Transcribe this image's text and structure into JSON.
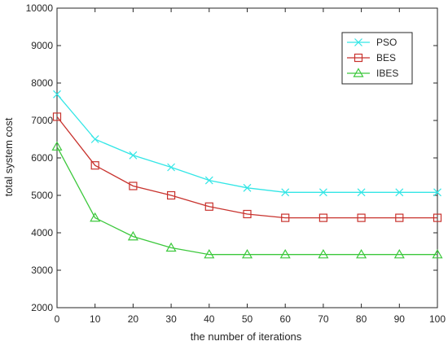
{
  "chart_data": {
    "type": "line",
    "title": "",
    "xlabel": "the number of iterations",
    "ylabel": "total system cost",
    "x": [
      0,
      10,
      20,
      30,
      40,
      50,
      60,
      70,
      80,
      90,
      100
    ],
    "xlim": [
      0,
      100
    ],
    "ylim": [
      2000,
      10000
    ],
    "xticks": [
      "0",
      "10",
      "20",
      "30",
      "40",
      "50",
      "60",
      "70",
      "80",
      "90",
      "100"
    ],
    "yticks": [
      "2000",
      "3000",
      "4000",
      "5000",
      "6000",
      "7000",
      "8000",
      "9000",
      "10000"
    ],
    "grid": false,
    "legend_position": "top-right",
    "series": [
      {
        "name": "PSO",
        "color": "#33e6e6",
        "marker": "x",
        "values": [
          7700,
          6500,
          6070,
          5750,
          5400,
          5200,
          5080,
          5080,
          5080,
          5080,
          5080
        ]
      },
      {
        "name": "BES",
        "color": "#c8322d",
        "marker": "square",
        "values": [
          7100,
          5800,
          5250,
          5000,
          4700,
          4500,
          4400,
          4400,
          4400,
          4400,
          4400
        ]
      },
      {
        "name": "IBES",
        "color": "#3cc83c",
        "marker": "triangle",
        "values": [
          6300,
          4400,
          3900,
          3600,
          3420,
          3420,
          3420,
          3420,
          3420,
          3420,
          3420
        ]
      }
    ]
  }
}
